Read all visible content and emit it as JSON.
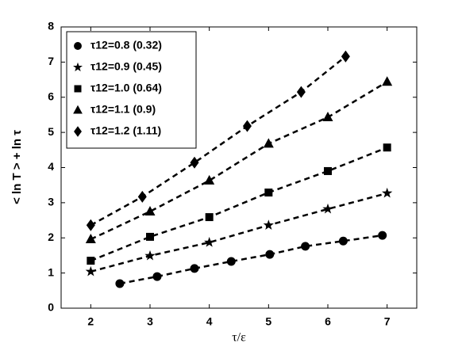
{
  "chart_data": {
    "type": "scatter",
    "xlabel": "τ/ε",
    "ylabel": "< ln T > + ln τ",
    "xlim": [
      1.5,
      7.5
    ],
    "ylim": [
      0,
      8
    ],
    "xticks": [
      2,
      3,
      4,
      5,
      6,
      7
    ],
    "yticks": [
      0,
      1,
      2,
      3,
      4,
      5,
      6,
      7,
      8
    ],
    "line_style": "dashed",
    "legend": "upper left",
    "color": "#000000",
    "series": [
      {
        "name": "τ12=0.8  (0.32)",
        "marker": "circle",
        "x": [
          2.49,
          3.12,
          3.75,
          4.37,
          5.02,
          5.62,
          6.26,
          6.92
        ],
        "values": [
          0.7,
          0.9,
          1.13,
          1.33,
          1.53,
          1.76,
          1.91,
          2.07
        ]
      },
      {
        "name": "τ12=0.9  (0.45)",
        "marker": "star",
        "x": [
          2,
          3,
          4,
          5,
          6,
          7
        ],
        "values": [
          1.04,
          1.49,
          1.87,
          2.36,
          2.82,
          3.27
        ]
      },
      {
        "name": "τ12=1.0  (0.64)",
        "marker": "square",
        "x": [
          2,
          3,
          4,
          5,
          6,
          7
        ],
        "values": [
          1.35,
          2.03,
          2.59,
          3.29,
          3.9,
          4.57
        ]
      },
      {
        "name": "τ12=1.1  (0.9)",
        "marker": "triangle",
        "x": [
          2,
          3,
          4,
          5,
          6,
          7
        ],
        "values": [
          1.96,
          2.75,
          3.63,
          4.68,
          5.43,
          6.44
        ]
      },
      {
        "name": "τ12=1.2  (1.11)",
        "marker": "diamond",
        "x": [
          2,
          2.87,
          3.75,
          4.64,
          5.55,
          6.3
        ],
        "values": [
          2.36,
          3.17,
          4.14,
          5.18,
          6.15,
          7.16
        ]
      }
    ]
  }
}
